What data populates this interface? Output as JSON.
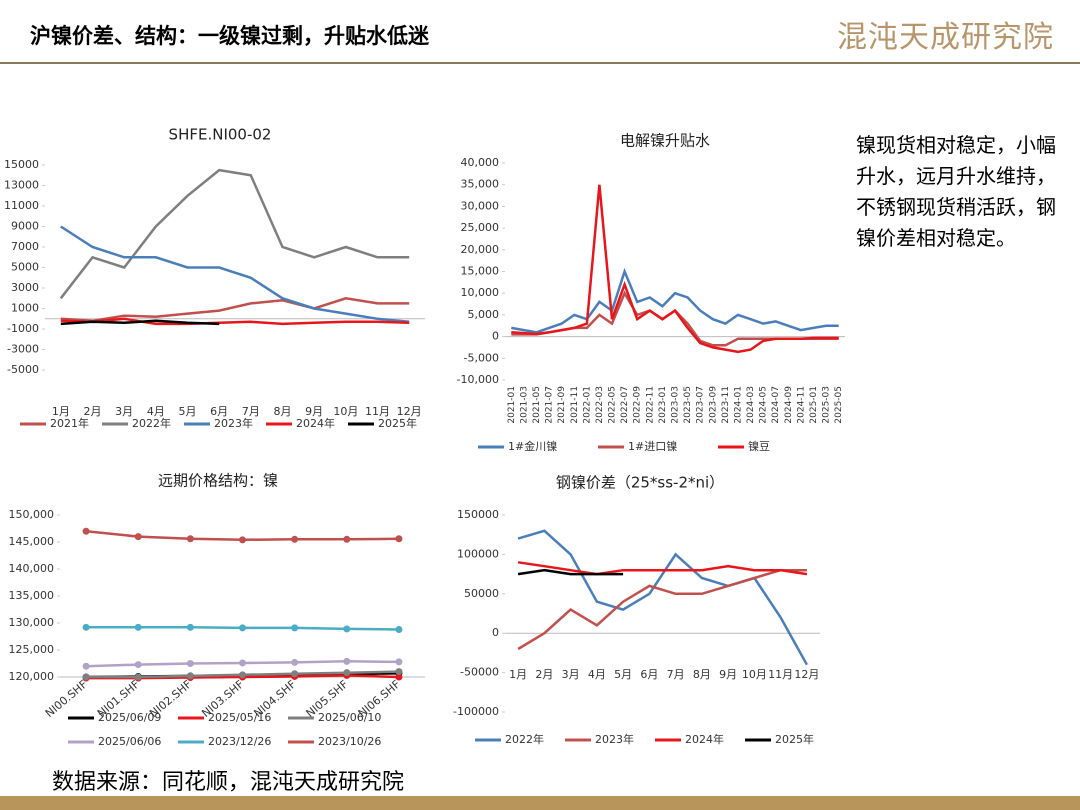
{
  "header": {
    "title": "沪镍价差、结构：一级镍过剩，升贴水低迷",
    "logo": "混沌天成研究院"
  },
  "note": "镍现货相对稳定，小幅升水，远月升水维持，不锈钢现货稍活跃，钢镍价差相对稳定。",
  "source": "数据来源：同花顺，混沌天成研究院",
  "chart_data": [
    {
      "type": "line",
      "title": "SHFE.NI00-02",
      "categories": [
        "1月",
        "2月",
        "3月",
        "4月",
        "5月",
        "6月",
        "7月",
        "8月",
        "9月",
        "10月",
        "11月",
        "12月"
      ],
      "ylim": [
        -5000,
        15000
      ],
      "yticks": [
        -5000,
        -3000,
        -1000,
        1000,
        3000,
        5000,
        7000,
        9000,
        11000,
        13000,
        15000
      ],
      "series": [
        {
          "name": "2021年",
          "color": "#c0504d",
          "values": [
            0,
            -200,
            300,
            200,
            500,
            800,
            1500,
            1800,
            1000,
            2000,
            1500,
            1500
          ]
        },
        {
          "name": "2022年",
          "color": "#7f7f7f",
          "values": [
            2000,
            6000,
            5000,
            9000,
            12000,
            14500,
            14000,
            7000,
            6000,
            7000,
            6000,
            6000
          ]
        },
        {
          "name": "2023年",
          "color": "#4a7ebb",
          "values": [
            9000,
            7000,
            6000,
            6000,
            5000,
            5000,
            4000,
            2000,
            1000,
            500,
            0,
            -300
          ]
        },
        {
          "name": "2024年",
          "color": "#e8161b",
          "values": [
            -200,
            -300,
            0,
            -500,
            -500,
            -400,
            -300,
            -500,
            -400,
            -300,
            -300,
            -400
          ]
        },
        {
          "name": "2025年",
          "color": "#000000",
          "values": [
            -500,
            -300,
            -400,
            -200,
            -400,
            -500,
            null,
            null,
            null,
            null,
            null,
            null
          ]
        }
      ]
    },
    {
      "type": "line",
      "title": "电解镍升贴水",
      "categories": [
        "2021-01",
        "2021-03",
        "2021-05",
        "2021-07",
        "2021-09",
        "2021-11",
        "2022-01",
        "2022-03",
        "2022-05",
        "2022-07",
        "2022-09",
        "2022-11",
        "2023-01",
        "2023-03",
        "2023-05",
        "2023-07",
        "2023-09",
        "2023-11",
        "2024-01",
        "2024-03",
        "2024-05",
        "2024-07",
        "2024-09",
        "2024-11",
        "2025-01",
        "2025-03",
        "2025-05"
      ],
      "ylim": [
        -10000,
        40000
      ],
      "yticks": [
        {
          "value": -10000,
          "label": "-10,000"
        },
        {
          "value": -5000,
          "label": "-5,000"
        },
        0,
        {
          "value": 5000,
          "label": "5,000"
        },
        {
          "value": 10000,
          "label": "10,000"
        },
        {
          "value": 15000,
          "label": "15,000"
        },
        {
          "value": 20000,
          "label": "20,000"
        },
        {
          "value": 25000,
          "label": "25,000"
        },
        {
          "value": 30000,
          "label": "30,000"
        },
        {
          "value": 35000,
          "label": "35,000"
        },
        {
          "value": 40000,
          "label": "40,000"
        }
      ],
      "series": [
        {
          "name": "1#金川镍",
          "color": "#4a7ebb",
          "values": [
            2000,
            1500,
            1000,
            2000,
            3000,
            5000,
            4000,
            8000,
            6000,
            15000,
            8000,
            9000,
            7000,
            10000,
            9000,
            6000,
            4000,
            3000,
            5000,
            4000,
            3000,
            3500,
            2500,
            1500,
            2000,
            2500,
            2500
          ]
        },
        {
          "name": "1#进口镍",
          "color": "#c0504d",
          "values": [
            500,
            500,
            500,
            1000,
            1500,
            2000,
            2000,
            5000,
            3000,
            10000,
            5000,
            6000,
            4000,
            6000,
            3000,
            -1000,
            -2000,
            -2000,
            -500,
            -500,
            -500,
            -500,
            -500,
            -500,
            -500,
            -500,
            -500
          ]
        },
        {
          "name": "镍豆",
          "color": "#e8161b",
          "values": [
            1000,
            800,
            600,
            1000,
            1500,
            2000,
            3000,
            35000,
            4000,
            12000,
            4000,
            6000,
            4000,
            6000,
            2000,
            -1500,
            -2500,
            -3000,
            -3500,
            -3000,
            -1000,
            -500,
            -500,
            -500,
            -300,
            -300,
            -300
          ]
        }
      ]
    },
    {
      "type": "line",
      "title": "远期价格结构：镍",
      "categories": [
        "NI00.SHF",
        "NI01.SHF",
        "NI02.SHF",
        "NI03.SHF",
        "NI04.SHF",
        "NI05.SHF",
        "NI06.SHF"
      ],
      "ylim": [
        120000,
        150000
      ],
      "yticks": [
        {
          "value": 120000,
          "label": "120,000"
        },
        {
          "value": 125000,
          "label": "125,000"
        },
        {
          "value": 130000,
          "label": "130,000"
        },
        {
          "value": 135000,
          "label": "135,000"
        },
        {
          "value": 140000,
          "label": "140,000"
        },
        {
          "value": 145000,
          "label": "145,000"
        },
        {
          "value": 150000,
          "label": "150,000"
        }
      ],
      "series": [
        {
          "name": "2025/06/09",
          "color": "#000000",
          "values": [
            120000,
            120100,
            120200,
            120300,
            120400,
            120500,
            120700
          ]
        },
        {
          "name": "2025/05/16",
          "color": "#e8161b",
          "values": [
            119800,
            119800,
            119900,
            120000,
            120100,
            120300,
            120000
          ]
        },
        {
          "name": "2025/06/10",
          "color": "#7f7f7f",
          "values": [
            120000,
            120000,
            120200,
            120400,
            120600,
            120800,
            121000
          ]
        },
        {
          "name": "2025/06/06",
          "color": "#b3a2c7",
          "values": [
            122000,
            122300,
            122500,
            122600,
            122700,
            122900,
            122800
          ]
        },
        {
          "name": "2023/12/26",
          "color": "#4bacc6",
          "values": [
            129200,
            129200,
            129200,
            129100,
            129100,
            128900,
            128800
          ]
        },
        {
          "name": "2023/10/26",
          "color": "#c0504d",
          "values": [
            147000,
            146000,
            145600,
            145400,
            145500,
            145500,
            145600
          ]
        }
      ]
    },
    {
      "type": "line",
      "title": "钢镍价差（25*ss-2*ni）",
      "categories": [
        "1月",
        "2月",
        "3月",
        "4月",
        "5月",
        "6月",
        "7月",
        "8月",
        "9月",
        "10月",
        "11月",
        "12月"
      ],
      "ylim": [
        -100000,
        150000
      ],
      "yticks": [
        -100000,
        -50000,
        0,
        50000,
        100000,
        150000
      ],
      "series": [
        {
          "name": "2022年",
          "color": "#4a7ebb",
          "values": [
            120000,
            130000,
            100000,
            40000,
            30000,
            50000,
            100000,
            70000,
            60000,
            70000,
            20000,
            -40000
          ]
        },
        {
          "name": "2023年",
          "color": "#c0504d",
          "values": [
            -20000,
            0,
            30000,
            10000,
            40000,
            60000,
            50000,
            50000,
            60000,
            70000,
            80000,
            80000
          ]
        },
        {
          "name": "2024年",
          "color": "#e8161b",
          "values": [
            90000,
            85000,
            80000,
            75000,
            80000,
            80000,
            80000,
            80000,
            85000,
            80000,
            80000,
            75000
          ]
        },
        {
          "name": "2025年",
          "color": "#000000",
          "values": [
            75000,
            80000,
            75000,
            75000,
            75000,
            null,
            null,
            null,
            null,
            null,
            null,
            null
          ]
        }
      ]
    }
  ]
}
